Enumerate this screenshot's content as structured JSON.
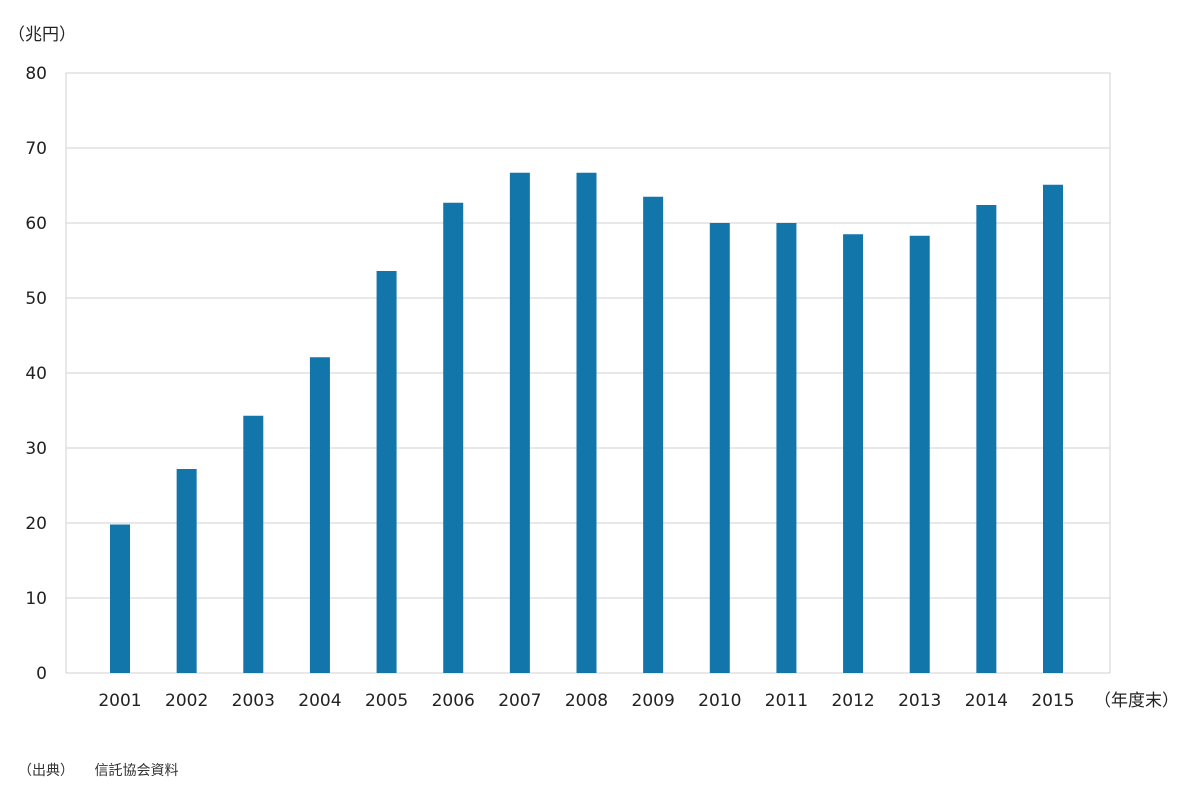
{
  "chart_data": {
    "type": "bar",
    "ylabel": "（兆円）",
    "xlabel": "（年度末）",
    "ylim": [
      0,
      80
    ],
    "yticks": [
      0,
      10,
      20,
      30,
      40,
      50,
      60,
      70,
      80
    ],
    "grid": true,
    "bar_color": "#1276AB",
    "grid_color": "#d0d0d0",
    "categories": [
      "2001",
      "2002",
      "2003",
      "2004",
      "2005",
      "2006",
      "2007",
      "2008",
      "2009",
      "2010",
      "2011",
      "2012",
      "2013",
      "2014",
      "2015"
    ],
    "values": [
      19.8,
      27.2,
      34.3,
      42.1,
      53.6,
      62.7,
      66.7,
      66.7,
      63.5,
      60.0,
      60.0,
      58.5,
      58.3,
      62.4,
      65.1
    ]
  },
  "source": {
    "label": "（出典）",
    "text": "信託協会資料"
  }
}
